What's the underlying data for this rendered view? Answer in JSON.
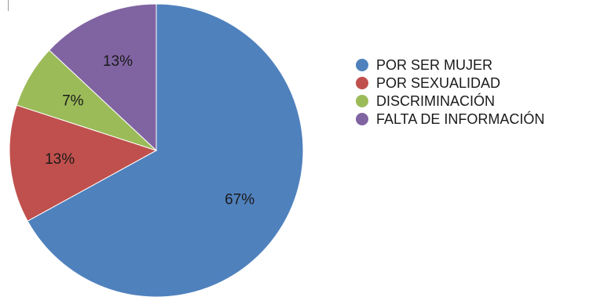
{
  "chart_data": {
    "type": "pie",
    "start_angle_deg": 0,
    "direction": "clockwise",
    "legend_position": "right",
    "slices": [
      {
        "label": "POR SER MUJER",
        "value": 67,
        "value_label": "67%",
        "color": "#4F81BD"
      },
      {
        "label": "POR SEXUALIDAD",
        "value": 13,
        "value_label": "13%",
        "color": "#C0504D"
      },
      {
        "label": "DISCRIMINACIÓN",
        "value": 7,
        "value_label": "7%",
        "color": "#9BBB59"
      },
      {
        "label": "FALTA DE INFORMACIÓN",
        "value": 13,
        "value_label": "13%",
        "color": "#8064A2"
      }
    ]
  }
}
